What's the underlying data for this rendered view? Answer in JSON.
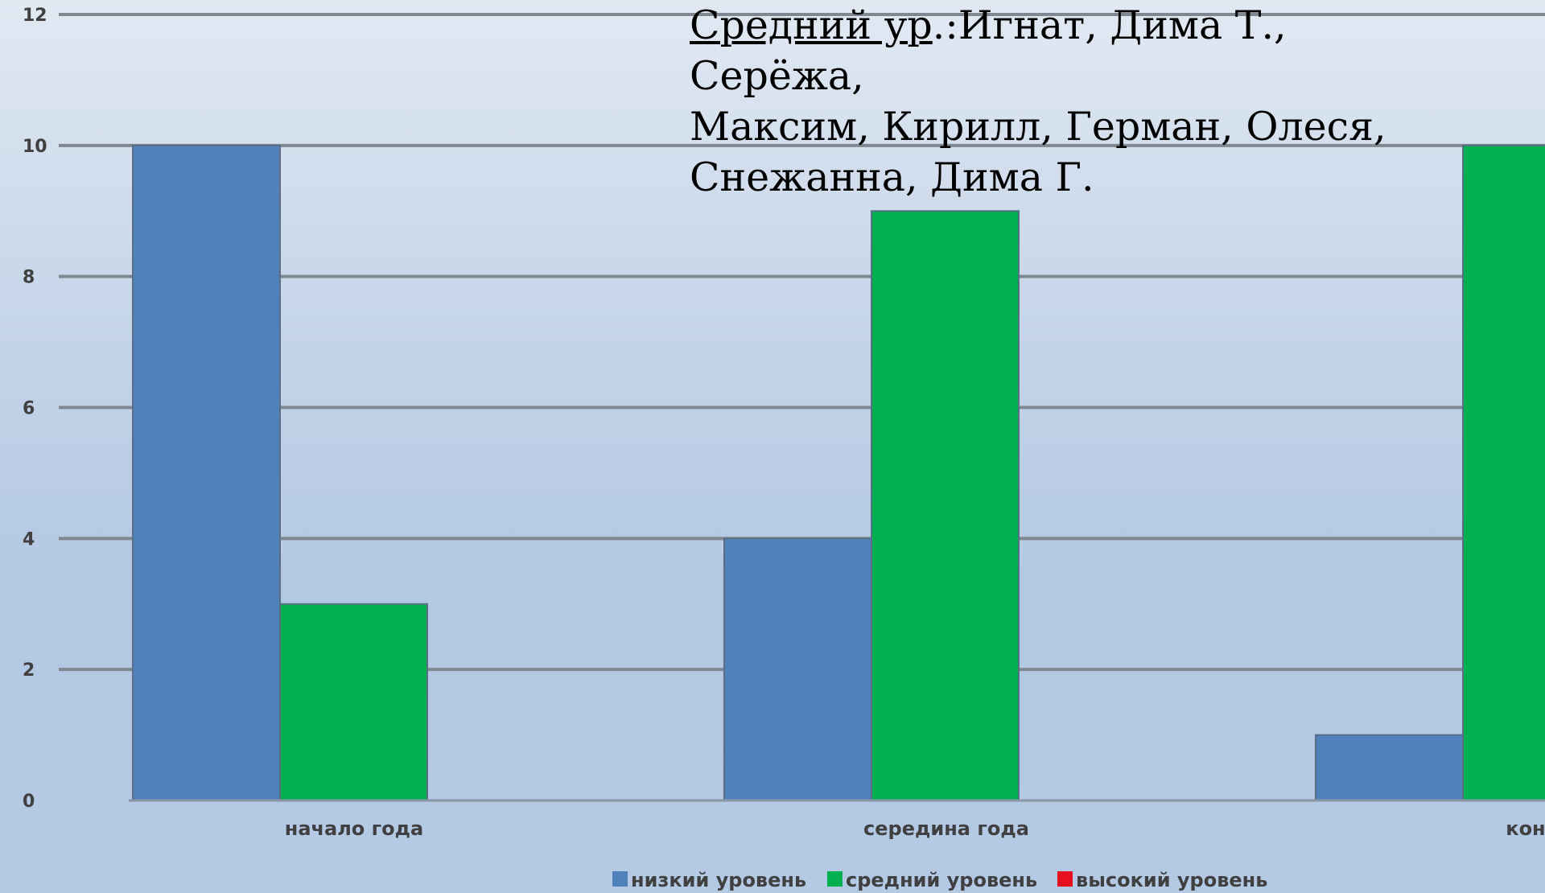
{
  "chart_data": {
    "type": "bar",
    "categories": [
      "начало года",
      "середина года",
      "конец"
    ],
    "series": [
      {
        "name": "низкий уровень",
        "values": [
          10,
          4,
          1
        ],
        "color": "#4f81bd"
      },
      {
        "name": "средний уровень",
        "values": [
          3,
          9,
          10
        ],
        "color": "#00b050"
      },
      {
        "name": "высокий уровень",
        "values": [
          0,
          0,
          0
        ],
        "color": "#e8101e"
      }
    ],
    "yticks": [
      "0",
      "2",
      "4",
      "6",
      "8",
      "10",
      "12"
    ],
    "ylim": [
      0,
      12
    ],
    "grid": true,
    "legend_position": "bottom"
  },
  "annotation": {
    "label_underlined": "Средний ур",
    "text_line1": ".:Игнат, Дима Т., Серёжа,",
    "text_line2": "Максим, Кирилл, Герман, Олеся,",
    "text_line3": "Снежанна, Дима Г."
  }
}
